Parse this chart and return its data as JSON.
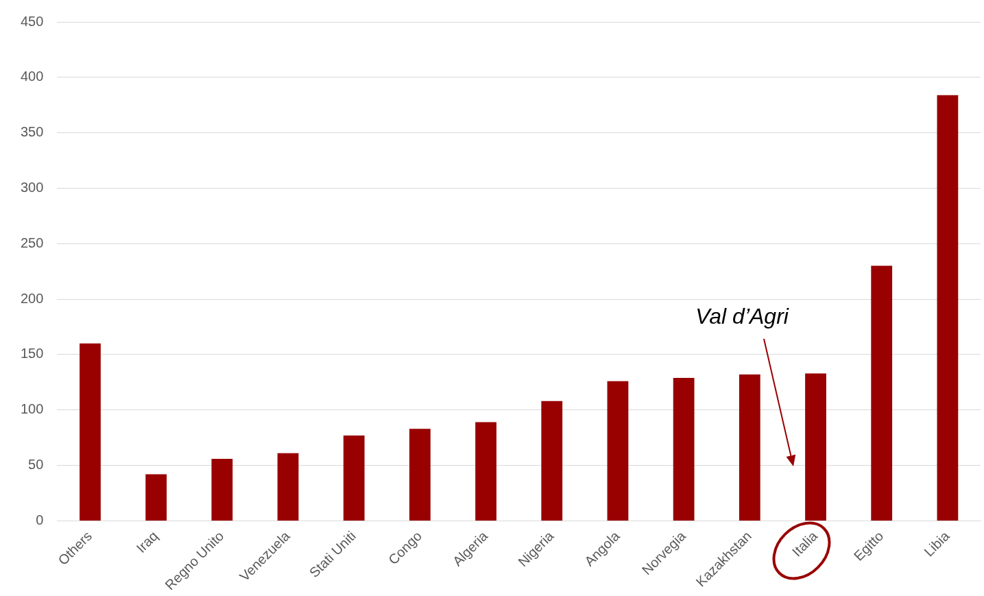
{
  "chart_data": {
    "type": "bar",
    "categories": [
      "Others",
      "Iraq",
      "Regno Unito",
      "Venezuela",
      "Stati Uniti",
      "Congo",
      "Algeria",
      "Nigeria",
      "Angola",
      "Norvegia",
      "Kazakhstan",
      "Italia",
      "Egitto",
      "Libia"
    ],
    "values": [
      160,
      42,
      56,
      61,
      77,
      83,
      89,
      108,
      126,
      129,
      132,
      133,
      230,
      384
    ],
    "color": "#990000",
    "ylim": [
      0,
      450
    ],
    "yticks": [
      0,
      50,
      100,
      150,
      200,
      250,
      300,
      350,
      400,
      450
    ],
    "grid": "y",
    "legend": false,
    "annotations": [
      "Val d’Agri"
    ]
  }
}
